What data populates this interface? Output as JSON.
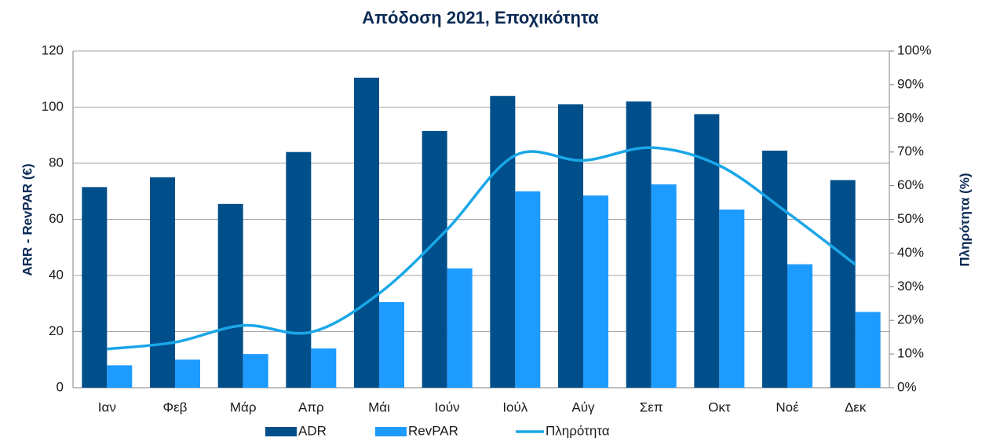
{
  "chart_data": {
    "type": "bar-line",
    "title": "Απόδοση 2021, Εποχικότητα",
    "ylabel": "ARR - RevPAR (€)",
    "y2label": "Πληρότητα (%)",
    "categories": [
      "Ιαν",
      "Φεβ",
      "Μάρ",
      "Απρ",
      "Μάι",
      "Ιούν",
      "Ιούλ",
      "Αύγ",
      "Σεπ",
      "Οκτ",
      "Νοέ",
      "Δεκ"
    ],
    "series": [
      {
        "name": "ADR",
        "type": "bar",
        "color": "#004f8b",
        "values": [
          71.5,
          75,
          65.5,
          84,
          110.5,
          91.5,
          104,
          101,
          102,
          97.5,
          84.5,
          74
        ]
      },
      {
        "name": "RevPAR",
        "type": "bar",
        "color": "#1e9bff",
        "values": [
          8,
          10,
          12,
          14,
          30.5,
          42.5,
          70,
          68.5,
          72.5,
          63.5,
          44,
          27
        ]
      },
      {
        "name": "Πληρότητα",
        "type": "line",
        "axis": "y2",
        "color": "#1aa7e8",
        "values": [
          11.5,
          13.5,
          18.5,
          16.5,
          28,
          47,
          69,
          67.5,
          71.3,
          66,
          52,
          36.6
        ]
      }
    ],
    "ylim": [
      0,
      120
    ],
    "yticks": [
      0,
      20,
      40,
      60,
      80,
      100,
      120
    ],
    "y2lim": [
      0,
      100
    ],
    "y2ticks": [
      {
        "value": 0,
        "label": "0%"
      },
      {
        "value": 10,
        "label": "10%"
      },
      {
        "value": 20,
        "label": "20%"
      },
      {
        "value": 30,
        "label": "30%"
      },
      {
        "value": 40,
        "label": "40%"
      },
      {
        "value": 50,
        "label": "50%"
      },
      {
        "value": 60,
        "label": "60%"
      },
      {
        "value": 70,
        "label": "70%"
      },
      {
        "value": 80,
        "label": "80%"
      },
      {
        "value": 90,
        "label": "90%"
      },
      {
        "value": 100,
        "label": "100%"
      }
    ],
    "grid": true,
    "legend": "bottom"
  }
}
